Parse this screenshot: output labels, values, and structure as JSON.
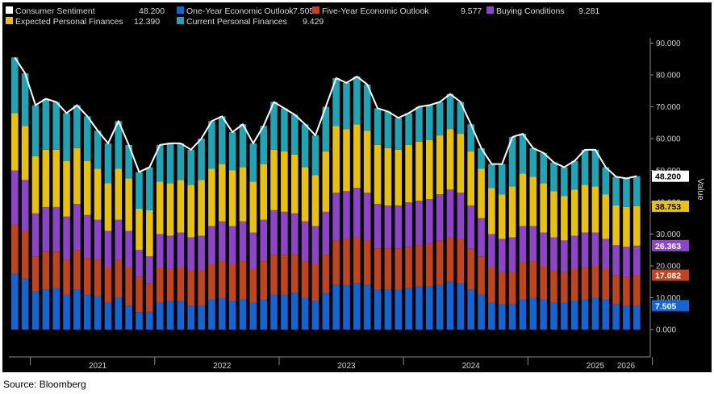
{
  "source_note": "Source: Bloomberg",
  "chart_data": {
    "type": "bar",
    "stacked": true,
    "ylabel": "Value",
    "ylim": [
      0,
      90
    ],
    "yticks": [
      "0.000",
      "10.000",
      "20.000",
      "30.000",
      "40.000",
      "50.000",
      "60.000",
      "70.000",
      "80.000",
      "90.000"
    ],
    "x_tick_labels": [
      "2021",
      "2022",
      "2023",
      "2024",
      "2025",
      "2026"
    ],
    "x_start_month": "2020-11",
    "grid": false,
    "legend_position": "top-left",
    "background_color": "#000000",
    "line": {
      "name": "Consumer Sentiment",
      "legend_value": "48.200",
      "color": "#ffffff",
      "values": [
        85.5,
        80.5,
        70.5,
        72.5,
        71.5,
        68,
        70.5,
        67,
        62.5,
        58.5,
        65.5,
        58,
        49.5,
        51,
        58,
        58.5,
        58.5,
        56.5,
        60,
        65.5,
        67,
        62,
        64.5,
        58.5,
        64,
        71.5,
        69.5,
        67.5,
        64.5,
        61,
        70,
        79,
        77.5,
        79.5,
        77,
        69.5,
        68.5,
        66.5,
        68,
        70,
        70.5,
        71.5,
        74,
        71.5,
        64.5,
        57,
        52,
        52,
        60.5,
        61.5,
        57,
        55.5,
        52.5,
        51,
        53,
        56.5,
        56.5,
        51,
        48,
        47.5,
        48.2
      ]
    },
    "series": [
      {
        "name": "One-Year Economic Outlook",
        "legend_value": "7.505",
        "tag": "7.505",
        "color": "#1464d2",
        "values": [
          17.5,
          16,
          12,
          12.5,
          13,
          11,
          12.5,
          11,
          10.5,
          8.5,
          10,
          7.5,
          5.5,
          5.5,
          8.5,
          9,
          9,
          7.5,
          7.5,
          9.5,
          10,
          9,
          9.5,
          8.5,
          9.5,
          11,
          11,
          11.5,
          10,
          9,
          11.5,
          14,
          14,
          14.5,
          14,
          12.5,
          12.5,
          12.5,
          13,
          13.5,
          13.5,
          14,
          15,
          14.5,
          12.5,
          11,
          8.5,
          8,
          8,
          9.5,
          10,
          9.5,
          8.5,
          8.5,
          9,
          9.5,
          10,
          9.5,
          8,
          7.5,
          7.505
        ]
      },
      {
        "name": "Five-Year Economic Outlook",
        "legend_value": "9.577",
        "tag": "17.082",
        "color": "#c0441e",
        "values": [
          15.5,
          15,
          11,
          12,
          11.5,
          11,
          12.5,
          11.5,
          11.5,
          11,
          12,
          12,
          11,
          9,
          11,
          10,
          10.5,
          11,
          11,
          11,
          11.5,
          11.5,
          12,
          10.5,
          12,
          12.5,
          12.5,
          12,
          11.5,
          11.5,
          12,
          14,
          14.5,
          14.5,
          14,
          13,
          13,
          13,
          13,
          13,
          13.5,
          14,
          14,
          14,
          13,
          12,
          11,
          10,
          10,
          11.5,
          11.5,
          10.5,
          10,
          9.5,
          10,
          10,
          10,
          9.5,
          9,
          9,
          9.577
        ]
      },
      {
        "name": "Buying Conditions",
        "legend_value": "9.281",
        "tag": "26.363",
        "color": "#8e44c8",
        "values": [
          17,
          16,
          13.5,
          14,
          14,
          13.5,
          14.5,
          13.5,
          12.5,
          11.5,
          12.5,
          11.5,
          8.5,
          8.5,
          10.5,
          10.5,
          11,
          10.5,
          11,
          12,
          12.5,
          12,
          12.5,
          11.5,
          13,
          14,
          13.5,
          13,
          12.5,
          12,
          13.5,
          15,
          15,
          15.5,
          15,
          14,
          13.5,
          13.5,
          14,
          14,
          14,
          14.5,
          15,
          14.5,
          13.5,
          12,
          10.5,
          10.5,
          11,
          11.5,
          11,
          10.5,
          10.5,
          10,
          10.5,
          11,
          10.5,
          9.5,
          9.5,
          9.5,
          9.281
        ]
      },
      {
        "name": "Expected Personal Finances",
        "legend_value": "12.390",
        "tag": "38.753",
        "color": "#e8c10e",
        "values": [
          18,
          17,
          18,
          18,
          18,
          17.5,
          17.5,
          17,
          16,
          15,
          16,
          16.5,
          13,
          14.5,
          16.5,
          16.5,
          16.5,
          16.5,
          17.5,
          18,
          18,
          17.5,
          17,
          16,
          17.5,
          19,
          19,
          18.5,
          17,
          16,
          19,
          21,
          19.5,
          20,
          19.5,
          18.5,
          18,
          17.5,
          18,
          18.5,
          18.5,
          18.5,
          19,
          18.5,
          17,
          15.5,
          14.5,
          14,
          16,
          16.5,
          15.5,
          15.5,
          14.5,
          14,
          14.5,
          15,
          14.5,
          14,
          12.5,
          12.5,
          12.39
        ]
      },
      {
        "name": "Current Personal Finances",
        "legend_value": "9.429",
        "tag": "48.200",
        "color": "#1ea4b4",
        "values": [
          17.5,
          16.5,
          16,
          16,
          15,
          15,
          13.5,
          14,
          12,
          12.5,
          15,
          10.5,
          11.5,
          13.5,
          11.5,
          12.5,
          11.5,
          11,
          13,
          15,
          15,
          12,
          13.5,
          12,
          12,
          15,
          13.5,
          12.5,
          13.5,
          12.5,
          14,
          15,
          14.5,
          15,
          14.5,
          11.5,
          11.5,
          10,
          10,
          11,
          11,
          10.5,
          11,
          10,
          8.5,
          6.5,
          7.5,
          9.5,
          15.5,
          12.5,
          9,
          9.5,
          9,
          9,
          9,
          11,
          11.5,
          8.5,
          9,
          9,
          9.429
        ]
      }
    ]
  }
}
